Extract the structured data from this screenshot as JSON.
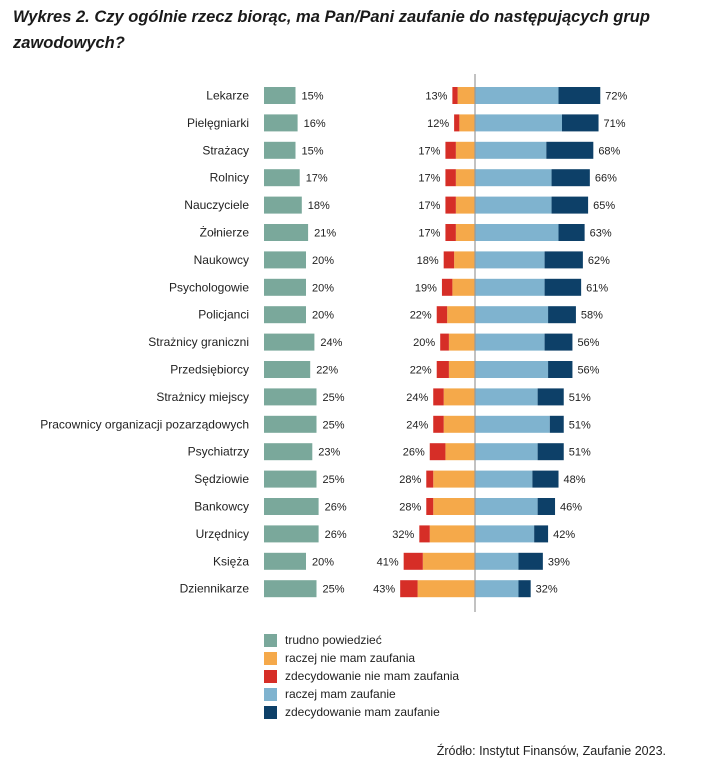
{
  "title": "Wykres 2. Czy ogólnie rzecz biorąc, ma Pan/Pani zaufanie do następujących grup zawodowych?",
  "source": "Źródło: Instytut Finansów, Zaufanie 2023.",
  "colors": {
    "trudno": "#7aa89b",
    "raczej_nie": "#f5a94a",
    "zdecydowanie_nie": "#d62e27",
    "raczej_tak": "#7fb3cf",
    "zdecydowanie_tak": "#0d4068",
    "axis": "#999999"
  },
  "legend": [
    {
      "label": "trudno powiedzieć",
      "color_key": "trudno"
    },
    {
      "label": "raczej nie mam zaufania",
      "color_key": "raczej_nie"
    },
    {
      "label": "zdecydowanie nie mam zaufania",
      "color_key": "zdecydowanie_nie"
    },
    {
      "label": "raczej mam zaufanie",
      "color_key": "raczej_tak"
    },
    {
      "label": "zdecydowanie mam zaufanie",
      "color_key": "zdecydowanie_tak"
    }
  ],
  "chart_data": {
    "type": "bar",
    "subtype": "diverging-stacked-bar",
    "title": "Wykres 2. Czy ogólnie rzecz biorąc, ma Pan/Pani zaufanie do następujących grup zawodowych?",
    "categories": [
      "Lekarze",
      "Pielęgniarki",
      "Strażacy",
      "Rolnicy",
      "Nauczyciele",
      "Żołnierze",
      "Naukowcy",
      "Psychologowie",
      "Policjanci",
      "Strażnicy graniczni",
      "Przedsiębiorcy",
      "Strażnicy miejscy",
      "Pracownicy organizacji pozarządowych",
      "Psychiatrzy",
      "Sędziowie",
      "Bankowcy",
      "Urzędnicy",
      "Księża",
      "Dziennikarze"
    ],
    "series": [
      {
        "name": "trudno powiedzieć",
        "values": [
          15,
          16,
          15,
          17,
          18,
          21,
          20,
          20,
          20,
          24,
          22,
          25,
          25,
          23,
          25,
          26,
          26,
          20,
          25
        ]
      },
      {
        "name": "raczej nie mam zaufania",
        "values": [
          10,
          9,
          11,
          11,
          11,
          11,
          12,
          13,
          16,
          15,
          15,
          18,
          18,
          17,
          24,
          24,
          26,
          30,
          33
        ]
      },
      {
        "name": "zdecydowanie nie mam zaufania",
        "values": [
          3,
          3,
          6,
          6,
          6,
          6,
          6,
          6,
          6,
          5,
          7,
          6,
          6,
          9,
          4,
          4,
          6,
          11,
          10
        ]
      },
      {
        "name": "raczej mam zaufanie",
        "values": [
          48,
          50,
          41,
          44,
          44,
          48,
          40,
          40,
          42,
          40,
          42,
          36,
          43,
          36,
          33,
          36,
          34,
          25,
          25
        ]
      },
      {
        "name": "zdecydowanie mam zaufanie",
        "values": [
          24,
          21,
          27,
          22,
          21,
          15,
          22,
          21,
          16,
          16,
          14,
          15,
          8,
          15,
          15,
          10,
          8,
          14,
          7
        ]
      }
    ],
    "labels": {
      "trudno": [
        "15%",
        "16%",
        "15%",
        "17%",
        "18%",
        "21%",
        "20%",
        "20%",
        "20%",
        "24%",
        "22%",
        "25%",
        "25%",
        "23%",
        "25%",
        "26%",
        "26%",
        "20%",
        "25%"
      ],
      "distrust_total": [
        "13%",
        "12%",
        "17%",
        "17%",
        "17%",
        "17%",
        "18%",
        "19%",
        "22%",
        "20%",
        "22%",
        "24%",
        "24%",
        "26%",
        "28%",
        "28%",
        "32%",
        "41%",
        "43%"
      ],
      "trust_total": [
        "72%",
        "71%",
        "68%",
        "66%",
        "65%",
        "63%",
        "62%",
        "61%",
        "58%",
        "56%",
        "56%",
        "51%",
        "51%",
        "51%",
        "48%",
        "46%",
        "42%",
        "39%",
        "32%"
      ]
    },
    "xlim": [
      -45,
      75
    ],
    "legend_position": "bottom"
  }
}
